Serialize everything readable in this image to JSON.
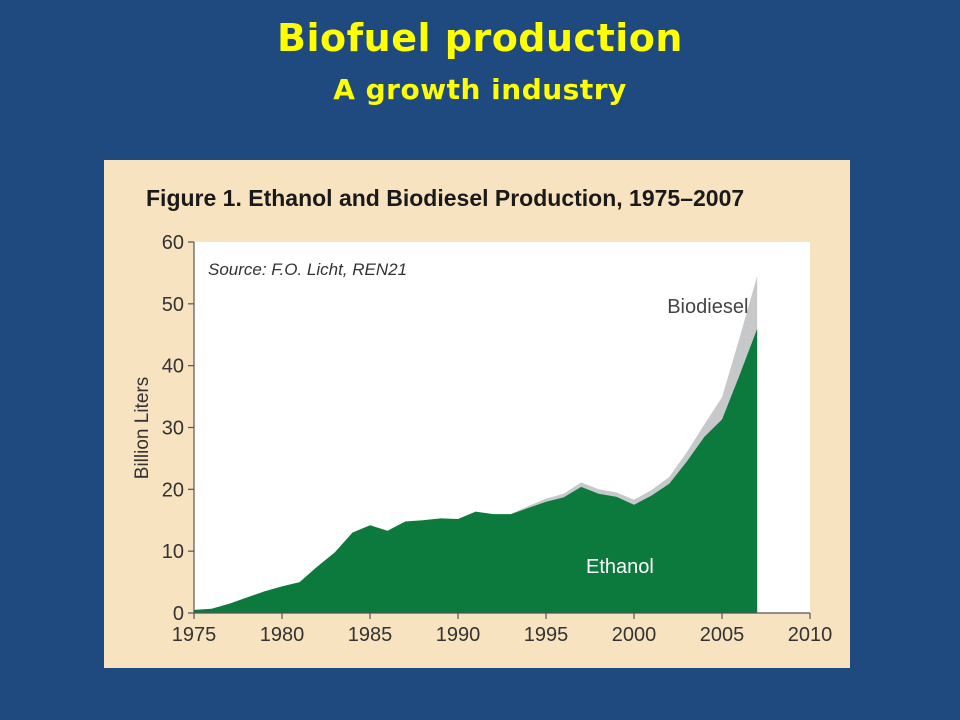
{
  "slide": {
    "title": "Biofuel production",
    "subtitle": "A growth industry"
  },
  "colors": {
    "background": "#1f4a7f",
    "title": "#ffff00",
    "panel": "#f7e3c0",
    "ethanol": "#0b7a3c",
    "biodiesel": "#c6c8ca"
  },
  "chart_data": {
    "type": "area",
    "stacked": true,
    "title": "Figure 1. Ethanol and Biodiesel Production, 1975–2007",
    "source_note": "Source: F.O. Licht, REN21",
    "ylabel": "Billion Liters",
    "xlabel": "",
    "xlim": [
      1975,
      2010
    ],
    "ylim": [
      0,
      60
    ],
    "x_ticks": [
      1975,
      1980,
      1985,
      1990,
      1995,
      2000,
      2005,
      2010
    ],
    "y_ticks": [
      0,
      10,
      20,
      30,
      40,
      50,
      60
    ],
    "grid": false,
    "x": [
      1975,
      1976,
      1977,
      1978,
      1979,
      1980,
      1981,
      1982,
      1983,
      1984,
      1985,
      1986,
      1987,
      1988,
      1989,
      1990,
      1991,
      1992,
      1993,
      1994,
      1995,
      1996,
      1997,
      1998,
      1999,
      2000,
      2001,
      2002,
      2003,
      2004,
      2005,
      2006,
      2007
    ],
    "series": [
      {
        "name": "Ethanol",
        "values": [
          0.5,
          0.7,
          1.5,
          2.5,
          3.5,
          4.3,
          5.0,
          7.5,
          9.8,
          13.0,
          14.2,
          13.3,
          14.8,
          15.0,
          15.3,
          15.2,
          16.4,
          16.0,
          16.0,
          17.0,
          18.0,
          18.7,
          20.4,
          19.3,
          18.8,
          17.5,
          19.0,
          20.9,
          24.5,
          28.5,
          31.3,
          38.5,
          46.0
        ]
      },
      {
        "name": "Biodiesel",
        "values": [
          0,
          0,
          0,
          0,
          0,
          0,
          0,
          0,
          0,
          0,
          0,
          0,
          0,
          0,
          0,
          0,
          0,
          0,
          0,
          0.3,
          0.5,
          0.6,
          0.7,
          0.7,
          0.7,
          0.8,
          0.9,
          1.1,
          1.5,
          2.0,
          3.6,
          6.0,
          8.5
        ]
      }
    ],
    "series_labels_on_chart": [
      "Biodiesel",
      "Ethanol"
    ]
  }
}
